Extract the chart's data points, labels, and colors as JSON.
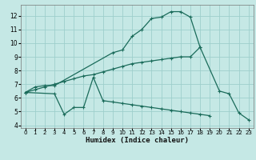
{
  "xlabel": "Humidex (Indice chaleur)",
  "bg_color": "#c5e8e5",
  "grid_color": "#9ecfcc",
  "line_color": "#1a6b5a",
  "xlim": [
    -0.5,
    23.5
  ],
  "ylim": [
    3.8,
    12.8
  ],
  "xticks": [
    0,
    1,
    2,
    3,
    4,
    5,
    6,
    7,
    8,
    9,
    10,
    11,
    12,
    13,
    14,
    15,
    16,
    17,
    18,
    19,
    20,
    21,
    22,
    23
  ],
  "yticks": [
    4,
    5,
    6,
    7,
    8,
    9,
    10,
    11,
    12
  ],
  "line1_x": [
    0,
    1,
    2,
    3,
    9,
    10,
    11,
    12,
    13,
    14,
    15,
    16,
    17,
    18
  ],
  "line1_y": [
    6.4,
    6.8,
    6.9,
    6.9,
    9.3,
    9.5,
    10.5,
    11.0,
    11.8,
    11.9,
    12.3,
    12.3,
    11.9,
    9.7
  ],
  "line2_x": [
    0,
    3,
    4,
    5,
    6,
    7,
    8,
    9,
    10,
    11,
    12,
    13,
    14,
    15,
    16,
    17,
    18,
    19,
    20,
    21,
    22,
    23
  ],
  "line2_y": [
    6.4,
    6.3,
    4.8,
    5.3,
    5.3,
    7.5,
    5.8,
    5.7,
    5.6,
    5.5,
    5.4,
    5.3,
    5.2,
    5.1,
    5.0,
    4.9,
    4.8,
    4.7,
    null,
    null,
    null,
    null
  ],
  "line3_x": [
    0,
    1,
    2,
    3,
    4,
    5,
    6,
    7,
    8,
    9,
    10,
    11,
    12,
    13,
    14,
    15,
    16,
    17,
    18,
    20,
    21,
    22,
    23
  ],
  "line3_y": [
    6.4,
    6.6,
    6.8,
    7.0,
    7.2,
    7.4,
    7.6,
    7.7,
    7.9,
    8.1,
    8.3,
    8.5,
    8.6,
    8.7,
    8.8,
    8.9,
    9.0,
    9.0,
    9.7,
    6.5,
    6.3,
    4.9,
    4.4
  ]
}
